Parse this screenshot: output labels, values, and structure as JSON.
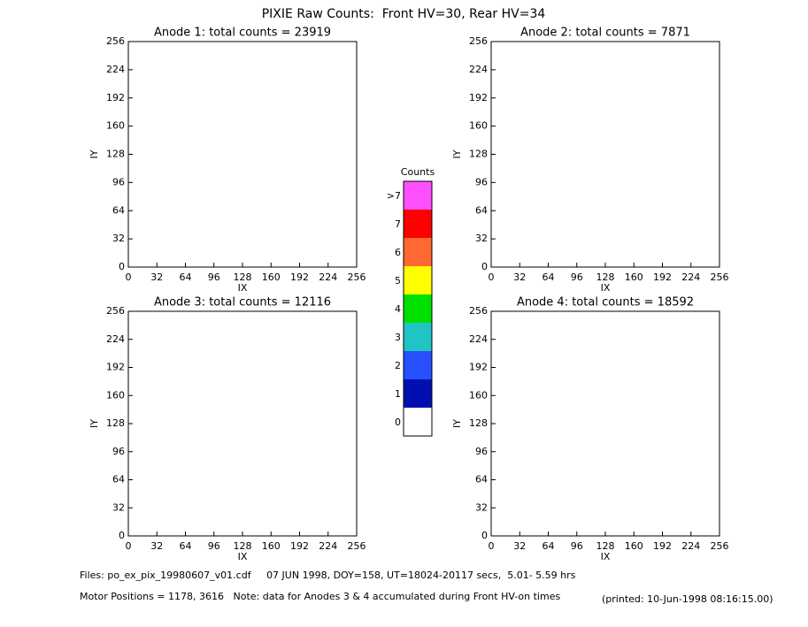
{
  "title": "PIXIE Raw Counts:  Front HV=30, Rear HV=34",
  "chart_data": [
    {
      "type": "heatmap",
      "title": "Anode 1: total counts = 23919",
      "xlabel": "IX",
      "ylabel": "IY",
      "xlim": [
        0,
        256
      ],
      "ylim": [
        0,
        256
      ],
      "xticks": [
        0,
        32,
        64,
        96,
        128,
        160,
        192,
        224,
        256
      ],
      "yticks": [
        0,
        32,
        64,
        96,
        128,
        160,
        192,
        224,
        256
      ]
    },
    {
      "type": "heatmap",
      "title": "Anode 2: total counts = 7871",
      "xlabel": "IX",
      "ylabel": "IY",
      "xlim": [
        0,
        256
      ],
      "ylim": [
        0,
        256
      ],
      "xticks": [
        0,
        32,
        64,
        96,
        128,
        160,
        192,
        224,
        256
      ],
      "yticks": [
        0,
        32,
        64,
        96,
        128,
        160,
        192,
        224,
        256
      ]
    },
    {
      "type": "heatmap",
      "title": "Anode 3: total counts = 12116",
      "xlabel": "IX",
      "ylabel": "IY",
      "xlim": [
        0,
        256
      ],
      "ylim": [
        0,
        256
      ],
      "xticks": [
        0,
        32,
        64,
        96,
        128,
        160,
        192,
        224,
        256
      ],
      "yticks": [
        0,
        32,
        64,
        96,
        128,
        160,
        192,
        224,
        256
      ]
    },
    {
      "type": "heatmap",
      "title": "Anode 4: total counts = 18592",
      "xlabel": "IX",
      "ylabel": "IY",
      "xlim": [
        0,
        256
      ],
      "ylim": [
        0,
        256
      ],
      "xticks": [
        0,
        32,
        64,
        96,
        128,
        160,
        192,
        224,
        256
      ],
      "yticks": [
        0,
        32,
        64,
        96,
        128,
        160,
        192,
        224,
        256
      ]
    }
  ],
  "colorbar": {
    "title": "Counts",
    "labels": [
      "0",
      "1",
      "2",
      "3",
      "4",
      "5",
      "6",
      "7",
      ">7"
    ],
    "colors": [
      "#ffffff",
      "#0010b0",
      "#2850ff",
      "#20c4c4",
      "#00e000",
      "#ffff00",
      "#ff6830",
      "#ff0000",
      "#ff50ff"
    ]
  },
  "footer": {
    "files": "Files: po_ex_pix_19980607_v01.cdf     07 JUN 1998, DOY=158, UT=18024-20117 secs,  5.01- 5.59 hrs",
    "motor": "Motor Positions = 1178, 3616   Note: data for Anodes 3 & 4 accumulated during Front HV-on times",
    "printed": "(printed: 10-Jun-1998 08:16:15.00)"
  }
}
